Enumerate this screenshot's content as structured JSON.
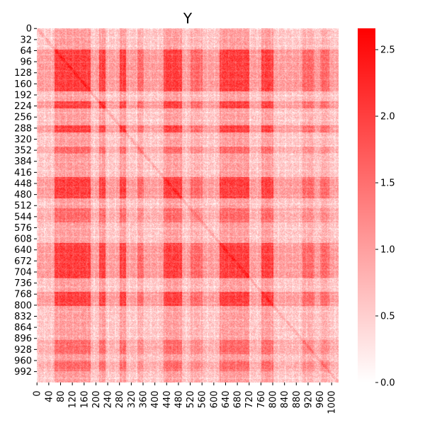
{
  "chart_data": {
    "type": "heatmap",
    "title": "Y",
    "xlabel": "",
    "ylabel": "",
    "n": 1024,
    "x_tick_values": [
      0,
      40,
      80,
      120,
      160,
      200,
      240,
      280,
      320,
      360,
      400,
      440,
      480,
      520,
      560,
      600,
      640,
      680,
      720,
      760,
      800,
      840,
      880,
      920,
      960,
      1000
    ],
    "x_tick_labels": [
      "0",
      "40",
      "80",
      "120",
      "160",
      "200",
      "240",
      "280",
      "320",
      "360",
      "400",
      "440",
      "480",
      "520",
      "560",
      "600",
      "640",
      "680",
      "720",
      "760",
      "800",
      "840",
      "880",
      "920",
      "960",
      "1000"
    ],
    "y_tick_values": [
      0,
      32,
      64,
      96,
      128,
      160,
      192,
      224,
      256,
      288,
      320,
      352,
      384,
      416,
      448,
      480,
      512,
      544,
      576,
      608,
      640,
      672,
      704,
      736,
      768,
      800,
      832,
      864,
      896,
      928,
      960,
      992
    ],
    "y_tick_labels": [
      "0",
      "32",
      "64",
      "96",
      "128",
      "160",
      "192",
      "224",
      "256",
      "288",
      "320",
      "352",
      "384",
      "416",
      "448",
      "480",
      "512",
      "544",
      "576",
      "608",
      "640",
      "672",
      "704",
      "736",
      "768",
      "800",
      "832",
      "864",
      "896",
      "928",
      "960",
      "992"
    ],
    "colorbar": {
      "min": 0.0,
      "max": 2.66,
      "ticks": [
        0.0,
        0.5,
        1.0,
        1.5,
        2.0,
        2.5
      ],
      "tick_labels": [
        "0.0",
        "0.5",
        "1.0",
        "1.5",
        "2.0",
        "2.5"
      ],
      "low_color": "#ffffff",
      "high_color": "#ff0000"
    },
    "base_value": 0.6,
    "strong_bands": [
      [
        60,
        180
      ],
      [
        210,
        230
      ],
      [
        280,
        300
      ],
      [
        430,
        490
      ],
      [
        620,
        720
      ],
      [
        760,
        800
      ]
    ],
    "weak_bands": [
      [
        340,
        360
      ],
      [
        520,
        560
      ],
      [
        900,
        940
      ],
      [
        960,
        990
      ]
    ],
    "diagonal_highlight": true
  }
}
